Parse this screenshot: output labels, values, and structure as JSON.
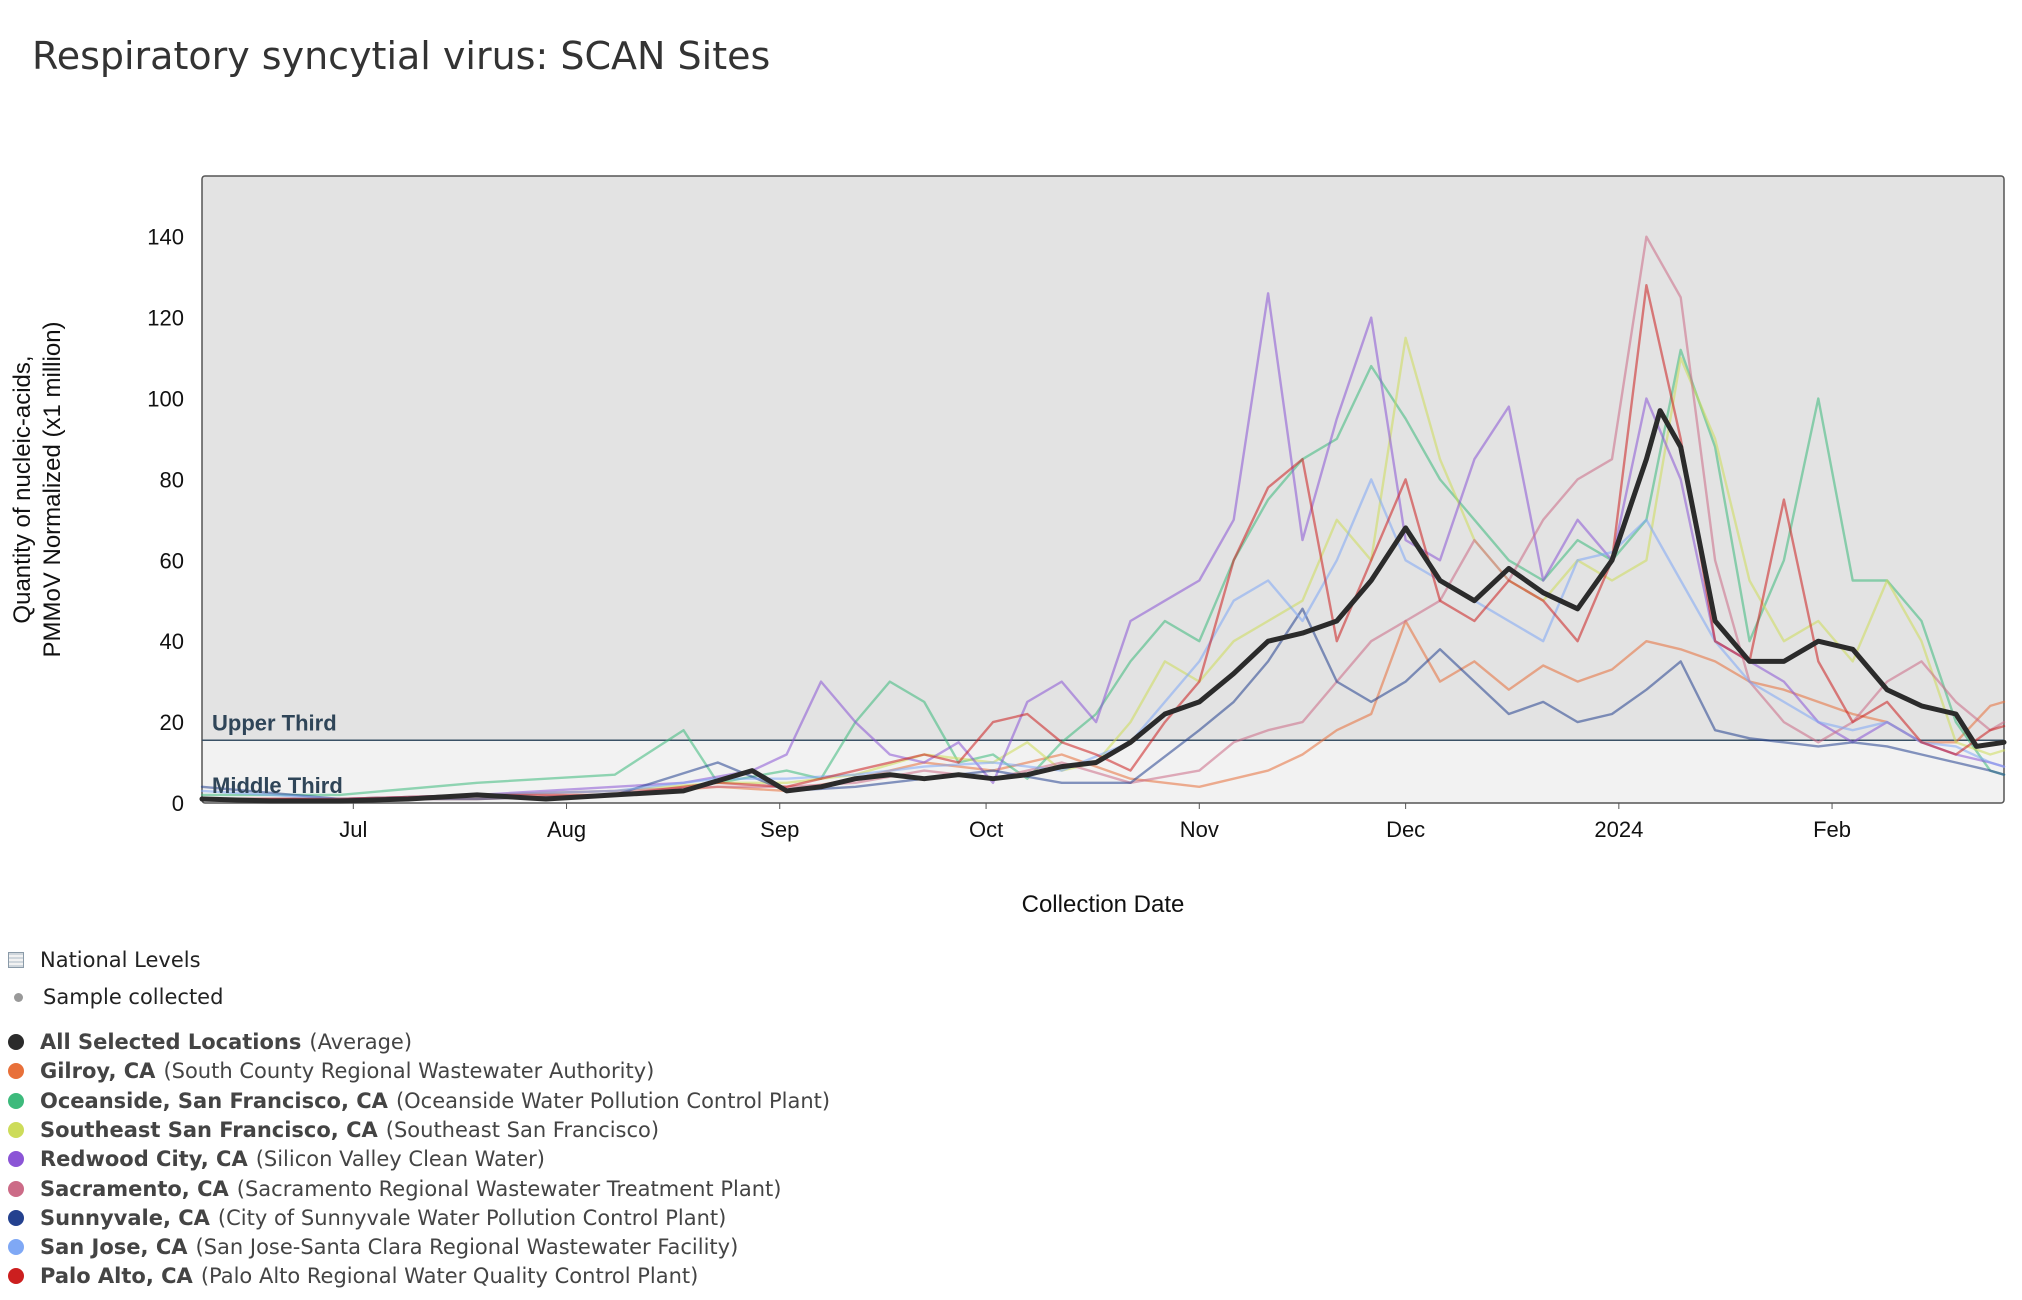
{
  "title": "Respiratory syncytial virus: SCAN Sites",
  "legend_header": {
    "national_levels": "National Levels",
    "sample_collected": "Sample collected"
  },
  "locations": [
    {
      "name": "All Selected Locations",
      "desc": "(Average)",
      "color": "#2b2b2b"
    },
    {
      "name": "Gilroy, CA",
      "desc": "(South County Regional Wastewater Authority)",
      "color": "#e8703a"
    },
    {
      "name": "Oceanside, San Francisco, CA",
      "desc": "(Oceanside Water Pollution Control Plant)",
      "color": "#3dba7c"
    },
    {
      "name": "Southeast San Francisco, CA",
      "desc": "(Southeast San Francisco)",
      "color": "#cddc5a"
    },
    {
      "name": "Redwood City, CA",
      "desc": "(Silicon Valley Clean Water)",
      "color": "#8b55d6"
    },
    {
      "name": "Sacramento, CA",
      "desc": "(Sacramento Regional Wastewater Treatment Plant)",
      "color": "#cc6b87"
    },
    {
      "name": "Sunnyvale, CA",
      "desc": "(City of Sunnyvale Water Pollution Control Plant)",
      "color": "#24418f"
    },
    {
      "name": "San Jose, CA",
      "desc": "(San Jose-Santa Clara Regional Wastewater Facility)",
      "color": "#7fa8f5"
    },
    {
      "name": "Palo Alto, CA",
      "desc": "(Palo Alto Regional Water Quality Control Plant)",
      "color": "#cc1f1f"
    }
  ],
  "chart_data": {
    "type": "line",
    "title": "Respiratory syncytial virus: SCAN Sites",
    "xlabel": "Collection Date",
    "ylabel_line1": "Quantity of nucleic-acids,",
    "ylabel_line2": "PMMoV Normalized (x1 million)",
    "ylim": [
      0,
      155
    ],
    "yticks": [
      0,
      20,
      40,
      60,
      80,
      100,
      120,
      140
    ],
    "xlim_days": [
      0,
      262
    ],
    "xticks": [
      {
        "label": "Jul",
        "day": 22
      },
      {
        "label": "Aug",
        "day": 53
      },
      {
        "label": "Sep",
        "day": 84
      },
      {
        "label": "Oct",
        "day": 114
      },
      {
        "label": "Nov",
        "day": 145
      },
      {
        "label": "Dec",
        "day": 175
      },
      {
        "label": "2024",
        "day": 206
      },
      {
        "label": "Feb",
        "day": 237
      }
    ],
    "thresholds": {
      "upper_label": "Upper Third",
      "middle_label": "Middle Third",
      "upper_value": 15.5
    },
    "series": [
      {
        "name": "Gilroy, CA",
        "color": "#e8703a",
        "x": [
          0,
          20,
          40,
          60,
          75,
          85,
          95,
          105,
          115,
          125,
          135,
          145,
          150,
          155,
          160,
          165,
          170,
          175,
          180,
          185,
          190,
          195,
          200,
          205,
          210,
          215,
          220,
          225,
          230,
          235,
          240,
          245,
          250,
          255,
          260,
          262
        ],
        "values": [
          1,
          1,
          1,
          2,
          4,
          3,
          6,
          10,
          8,
          12,
          6,
          4,
          6,
          8,
          12,
          18,
          22,
          45,
          30,
          35,
          28,
          34,
          30,
          33,
          40,
          38,
          35,
          30,
          28,
          25,
          22,
          20,
          15,
          15,
          24,
          25
        ]
      },
      {
        "name": "Oceanside, San Francisco, CA",
        "color": "#3dba7c",
        "x": [
          0,
          20,
          40,
          60,
          70,
          75,
          85,
          90,
          95,
          100,
          105,
          110,
          115,
          120,
          125,
          130,
          135,
          140,
          145,
          150,
          155,
          160,
          165,
          170,
          175,
          180,
          185,
          190,
          195,
          200,
          205,
          210,
          215,
          220,
          225,
          230,
          235,
          240,
          245,
          250,
          255,
          260,
          262
        ],
        "values": [
          2,
          2,
          5,
          7,
          18,
          5,
          8,
          6,
          20,
          30,
          25,
          10,
          12,
          6,
          15,
          22,
          35,
          45,
          40,
          60,
          75,
          85,
          90,
          108,
          95,
          80,
          70,
          60,
          55,
          65,
          60,
          70,
          112,
          88,
          40,
          60,
          100,
          55,
          55,
          45,
          20,
          8,
          7
        ]
      },
      {
        "name": "Southeast San Francisco, CA",
        "color": "#cddc5a",
        "x": [
          0,
          20,
          40,
          60,
          75,
          85,
          95,
          105,
          115,
          120,
          125,
          130,
          135,
          140,
          145,
          150,
          155,
          160,
          165,
          170,
          175,
          180,
          185,
          190,
          195,
          200,
          205,
          210,
          215,
          220,
          225,
          230,
          235,
          240,
          245,
          250,
          255,
          260,
          262
        ],
        "values": [
          1,
          1,
          2,
          3,
          5,
          5,
          7,
          12,
          10,
          15,
          8,
          10,
          20,
          35,
          30,
          40,
          45,
          50,
          70,
          60,
          115,
          85,
          65,
          55,
          50,
          60,
          55,
          60,
          110,
          90,
          55,
          40,
          45,
          35,
          55,
          40,
          15,
          12,
          13
        ]
      },
      {
        "name": "Redwood City, CA",
        "color": "#8b55d6",
        "x": [
          0,
          20,
          40,
          60,
          70,
          80,
          85,
          90,
          95,
          100,
          105,
          110,
          115,
          120,
          125,
          130,
          135,
          140,
          145,
          150,
          155,
          160,
          165,
          170,
          175,
          180,
          185,
          190,
          195,
          200,
          205,
          210,
          215,
          220,
          225,
          230,
          235,
          240,
          245,
          250,
          255,
          260,
          262
        ],
        "values": [
          1,
          1,
          2,
          4,
          5,
          8,
          12,
          30,
          20,
          12,
          10,
          15,
          5,
          25,
          30,
          20,
          45,
          50,
          55,
          70,
          126,
          65,
          95,
          120,
          65,
          60,
          85,
          98,
          55,
          70,
          60,
          100,
          80,
          40,
          35,
          30,
          20,
          15,
          20,
          15,
          12,
          10,
          9
        ]
      },
      {
        "name": "Sacramento, CA",
        "color": "#cc6b87",
        "x": [
          0,
          20,
          40,
          60,
          75,
          85,
          95,
          105,
          115,
          125,
          135,
          145,
          150,
          155,
          160,
          165,
          170,
          175,
          180,
          185,
          190,
          195,
          200,
          205,
          210,
          215,
          220,
          225,
          230,
          235,
          240,
          245,
          250,
          255,
          260,
          262
        ],
        "values": [
          1,
          1,
          2,
          3,
          4,
          4,
          5,
          8,
          6,
          10,
          5,
          8,
          15,
          18,
          20,
          30,
          40,
          45,
          50,
          65,
          55,
          70,
          80,
          85,
          140,
          125,
          60,
          30,
          20,
          15,
          20,
          30,
          35,
          25,
          18,
          20
        ]
      },
      {
        "name": "Sunnyvale, CA",
        "color": "#24418f",
        "x": [
          0,
          20,
          40,
          60,
          75,
          85,
          95,
          105,
          115,
          125,
          135,
          145,
          150,
          155,
          160,
          165,
          170,
          175,
          180,
          185,
          190,
          195,
          200,
          205,
          210,
          215,
          220,
          225,
          230,
          235,
          240,
          245,
          250,
          255,
          260,
          262
        ],
        "values": [
          4,
          1,
          1,
          2,
          10,
          3,
          4,
          6,
          8,
          5,
          5,
          18,
          25,
          35,
          48,
          30,
          25,
          30,
          38,
          30,
          22,
          25,
          20,
          22,
          28,
          35,
          18,
          16,
          15,
          14,
          15,
          14,
          12,
          10,
          8,
          7
        ]
      },
      {
        "name": "San Jose, CA",
        "color": "#7fa8f5",
        "x": [
          0,
          20,
          40,
          60,
          75,
          85,
          95,
          105,
          115,
          125,
          135,
          145,
          150,
          155,
          160,
          165,
          170,
          175,
          180,
          185,
          190,
          195,
          200,
          205,
          210,
          215,
          220,
          225,
          230,
          235,
          240,
          245,
          250,
          255,
          260,
          262
        ],
        "values": [
          3,
          1,
          2,
          3,
          6,
          6,
          7,
          9,
          10,
          8,
          15,
          35,
          50,
          55,
          45,
          60,
          80,
          60,
          55,
          50,
          45,
          40,
          60,
          62,
          70,
          55,
          40,
          30,
          25,
          20,
          18,
          20,
          15,
          14,
          10,
          9
        ]
      },
      {
        "name": "Palo Alto, CA",
        "color": "#cc1f1f",
        "x": [
          0,
          20,
          40,
          60,
          75,
          85,
          95,
          105,
          110,
          115,
          120,
          125,
          130,
          135,
          140,
          145,
          150,
          155,
          160,
          165,
          170,
          175,
          180,
          185,
          190,
          195,
          200,
          205,
          210,
          215,
          220,
          225,
          230,
          235,
          240,
          245,
          250,
          255,
          260,
          262
        ],
        "values": [
          1,
          1,
          2,
          2,
          5,
          4,
          8,
          12,
          10,
          20,
          22,
          15,
          12,
          8,
          20,
          30,
          60,
          78,
          85,
          40,
          60,
          80,
          50,
          45,
          55,
          50,
          40,
          60,
          128,
          90,
          40,
          35,
          75,
          35,
          20,
          25,
          15,
          12,
          18,
          19
        ]
      },
      {
        "name": "All Selected Locations",
        "color": "#2b2b2b",
        "x": [
          0,
          10,
          20,
          30,
          40,
          50,
          60,
          70,
          80,
          85,
          90,
          95,
          100,
          105,
          110,
          115,
          120,
          125,
          130,
          135,
          140,
          145,
          150,
          155,
          160,
          165,
          170,
          175,
          180,
          185,
          190,
          195,
          200,
          205,
          210,
          212,
          215,
          220,
          225,
          230,
          235,
          240,
          245,
          250,
          255,
          258,
          262
        ],
        "values": [
          1,
          0.5,
          0.5,
          1,
          2,
          1,
          2,
          3,
          8,
          3,
          4,
          6,
          7,
          6,
          7,
          6,
          7,
          9,
          10,
          15,
          22,
          25,
          32,
          40,
          42,
          45,
          55,
          68,
          55,
          50,
          58,
          52,
          48,
          60,
          85,
          97,
          88,
          45,
          35,
          35,
          40,
          38,
          28,
          24,
          22,
          14,
          15
        ]
      }
    ]
  }
}
